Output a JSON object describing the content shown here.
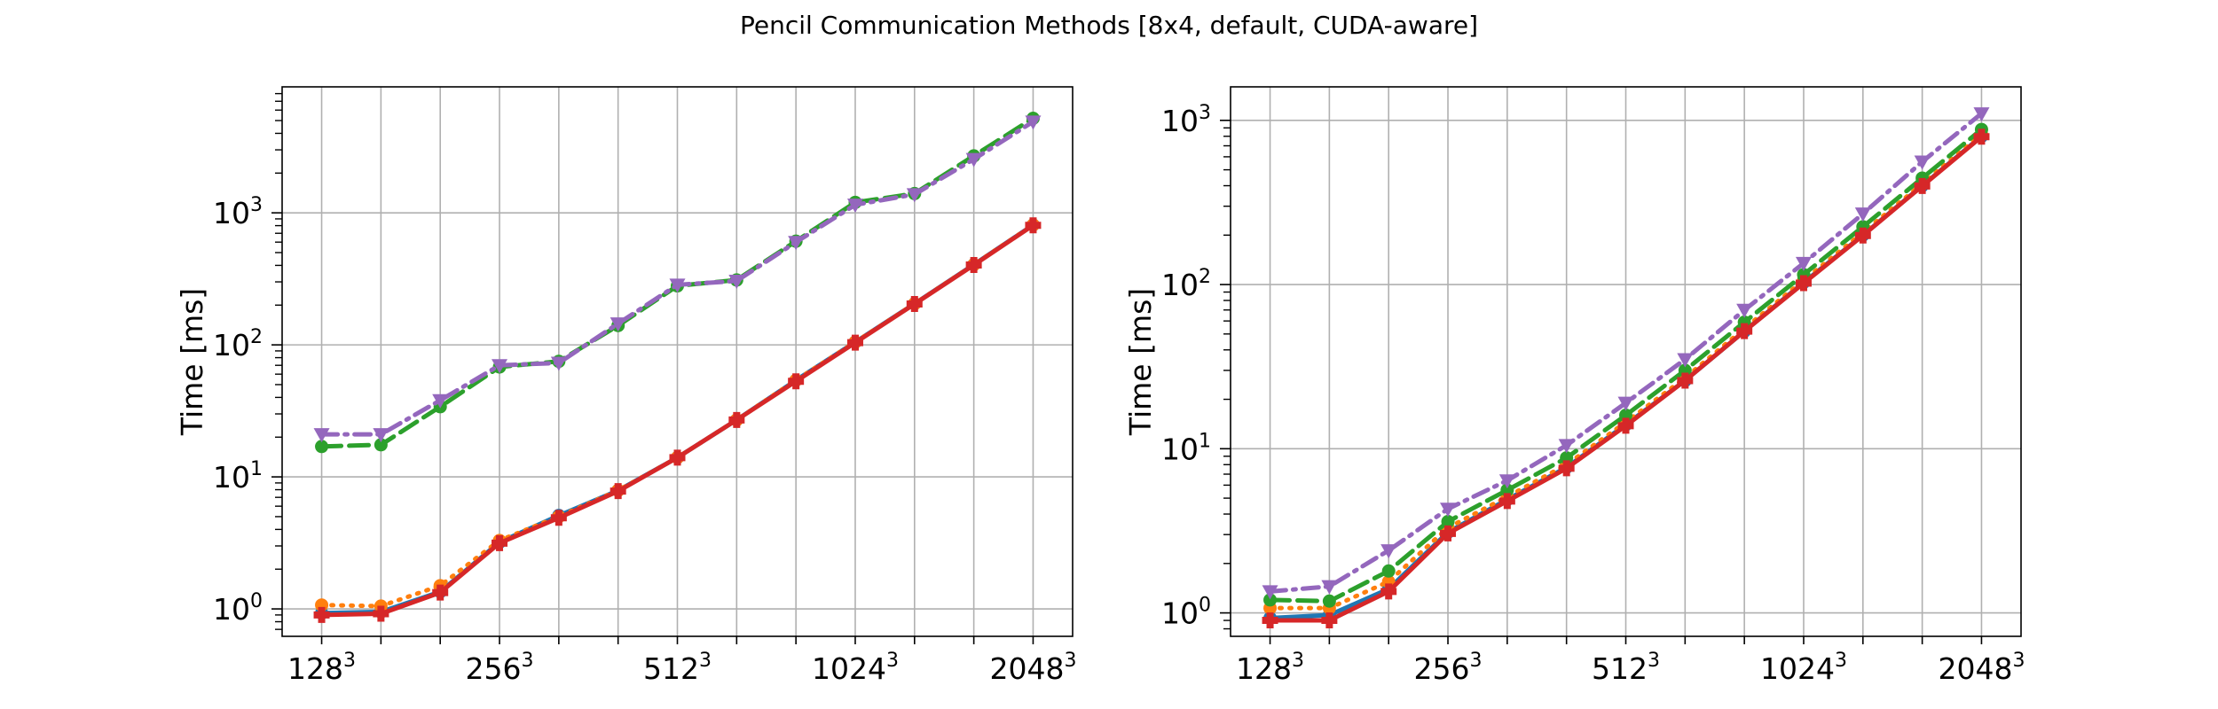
{
  "figure": {
    "title": "Pencil Communication Methods [8x4, default, CUDA-aware]"
  },
  "chart_data": [
    {
      "type": "line",
      "title": "",
      "xlabel": "",
      "ylabel": "Time [ms]",
      "yscale": "log",
      "ylim": [
        0.62,
        9000
      ],
      "grid": true,
      "x_tick_labels": [
        {
          "base": "128",
          "exp": "3"
        },
        {
          "base": "256",
          "exp": "3"
        },
        {
          "base": "512",
          "exp": "3"
        },
        {
          "base": "1024",
          "exp": "3"
        },
        {
          "base": "2048",
          "exp": "3"
        }
      ],
      "y_tick_labels": [
        {
          "base": "10",
          "exp": "0",
          "value": 1
        },
        {
          "base": "10",
          "exp": "1",
          "value": 10
        },
        {
          "base": "10",
          "exp": "2",
          "value": 100
        },
        {
          "base": "10",
          "exp": "3",
          "value": 1000
        }
      ],
      "x": [
        128,
        160,
        200,
        256,
        320,
        400,
        512,
        640,
        800,
        1024,
        1280,
        1600,
        2048
      ],
      "series": [
        {
          "color": "#1f77b4",
          "style": "solid",
          "marker": "circle",
          "values": [
            0.93,
            0.95,
            1.35,
            3.2,
            5.1,
            7.9,
            14,
            27,
            54,
            105,
            205,
            405,
            810
          ]
        },
        {
          "color": "#ff7f0e",
          "style": "dotted",
          "marker": "circle",
          "values": [
            1.07,
            1.05,
            1.5,
            3.3,
            5.0,
            7.9,
            14,
            27,
            54,
            105,
            205,
            405,
            810
          ]
        },
        {
          "color": "#2ca02c",
          "style": "dashed",
          "marker": "circle",
          "values": [
            17,
            17.5,
            34,
            68,
            75,
            140,
            280,
            310,
            610,
            1200,
            1400,
            2700,
            5200
          ]
        },
        {
          "color": "#d62728",
          "style": "solid",
          "marker": "plus",
          "values": [
            0.9,
            0.92,
            1.33,
            3.15,
            4.9,
            7.8,
            14,
            27,
            53,
            104,
            204,
            403,
            805
          ]
        },
        {
          "color": "#9467bd",
          "style": "dashdot",
          "marker": "triangle",
          "values": [
            21,
            21,
            38,
            70,
            73,
            145,
            285,
            305,
            600,
            1150,
            1380,
            2550,
            4900
          ]
        }
      ]
    },
    {
      "type": "line",
      "title": "",
      "xlabel": "",
      "ylabel": "Time [ms]",
      "yscale": "log",
      "ylim": [
        0.72,
        1600
      ],
      "grid": true,
      "x_tick_labels": [
        {
          "base": "128",
          "exp": "3"
        },
        {
          "base": "256",
          "exp": "3"
        },
        {
          "base": "512",
          "exp": "3"
        },
        {
          "base": "1024",
          "exp": "3"
        },
        {
          "base": "2048",
          "exp": "3"
        }
      ],
      "y_tick_labels": [
        {
          "base": "10",
          "exp": "0",
          "value": 1
        },
        {
          "base": "10",
          "exp": "1",
          "value": 10
        },
        {
          "base": "10",
          "exp": "2",
          "value": 100
        },
        {
          "base": "10",
          "exp": "3",
          "value": 1000
        }
      ],
      "x": [
        128,
        160,
        200,
        256,
        320,
        400,
        512,
        640,
        800,
        1024,
        1280,
        1600,
        2048
      ],
      "series": [
        {
          "color": "#1f77b4",
          "style": "solid",
          "marker": "circle",
          "values": [
            0.93,
            0.97,
            1.4,
            3.1,
            4.9,
            7.7,
            14,
            26,
            52,
            103,
            200,
            400,
            800
          ]
        },
        {
          "color": "#ff7f0e",
          "style": "dotted",
          "marker": "circle",
          "values": [
            1.07,
            1.07,
            1.55,
            3.3,
            5.1,
            8.0,
            14.5,
            27,
            54,
            106,
            207,
            410,
            820
          ]
        },
        {
          "color": "#2ca02c",
          "style": "dashed",
          "marker": "circle",
          "values": [
            1.2,
            1.18,
            1.8,
            3.6,
            5.6,
            8.8,
            16,
            30,
            59,
            115,
            225,
            445,
            880
          ]
        },
        {
          "color": "#d62728",
          "style": "solid",
          "marker": "plus",
          "values": [
            0.9,
            0.9,
            1.35,
            3.05,
            4.8,
            7.6,
            13.8,
            26,
            52,
            102,
            199,
            398,
            795
          ]
        },
        {
          "color": "#9467bd",
          "style": "dashdot",
          "marker": "triangle",
          "values": [
            1.35,
            1.45,
            2.4,
            4.3,
            6.4,
            10.5,
            19,
            35,
            70,
            135,
            270,
            560,
            1100
          ]
        }
      ]
    }
  ]
}
